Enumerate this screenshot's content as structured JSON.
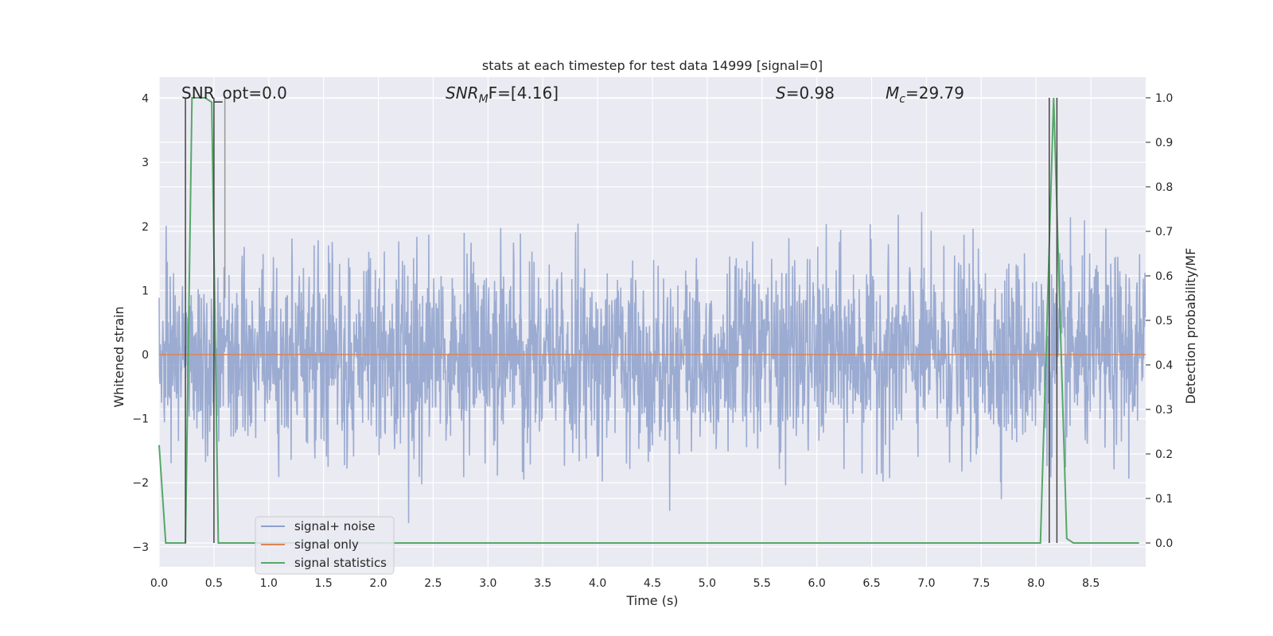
{
  "chart_data": {
    "type": "line",
    "title": "stats at each timestep for test data 14999 [signal=0]",
    "xlabel": "Time (s)",
    "ylabel_left": "Whitened strain",
    "ylabel_right": "Detection probability/MF",
    "xlim": [
      0,
      9.0
    ],
    "ylim_left": [
      -3.25,
      4.3
    ],
    "ylim_right": [
      0,
      1.0
    ],
    "x_ticks": [
      "0.0",
      "0.5",
      "1.0",
      "1.5",
      "2.0",
      "2.5",
      "3.0",
      "3.5",
      "4.0",
      "4.5",
      "5.0",
      "5.5",
      "6.0",
      "6.5",
      "7.0",
      "7.5",
      "8.0",
      "8.5"
    ],
    "y_ticks_left": [
      "−3",
      "−2",
      "−1",
      "0",
      "1",
      "2",
      "3",
      "4"
    ],
    "y_ticks_right": [
      "0.0",
      "0.1",
      "0.2",
      "0.3",
      "0.4",
      "0.5",
      "0.6",
      "0.7",
      "0.8",
      "0.9",
      "1.0"
    ],
    "grid": true,
    "annotations": {
      "snr_opt": "SNR_opt=0.0",
      "snr_mf_label": "SNR",
      "snr_mf_sub": "M",
      "snr_mf_rest": "F=[4.16]",
      "s_label": "S",
      "s_value": "=0.98",
      "mc_label": "M",
      "mc_sub": "c",
      "mc_value": "=29.79"
    },
    "legend": {
      "placement": "lower-left",
      "entries": [
        "signal+ noise",
        "signal only",
        "signal statistics"
      ]
    },
    "series": [
      {
        "name": "signal+ noise",
        "kind": "whitened noise strain, 4096 Hz, approx. gaussian sigma 0.75",
        "color": "#8da0cb",
        "sample_rate": 4096,
        "sigma": 0.75
      },
      {
        "name": "signal only",
        "color": "#dd8452",
        "x": [
          0,
          9.0
        ],
        "y": [
          0,
          0
        ]
      },
      {
        "name": "signal statistics",
        "axis": "right",
        "color": "#55a868",
        "x": [
          0.0,
          0.06,
          0.12,
          0.18,
          0.24,
          0.3,
          0.36,
          0.42,
          0.48,
          0.54,
          0.6,
          8.04,
          8.1,
          8.16,
          8.22,
          8.28,
          8.34,
          8.4,
          8.94
        ],
        "y": [
          0.22,
          0.0,
          0.0,
          0.0,
          0.0,
          1.0,
          1.0,
          1.0,
          0.99,
          0.0,
          0.0,
          0.0,
          0.5,
          1.0,
          0.5,
          0.01,
          0.0,
          0.0,
          0.0
        ]
      },
      {
        "name": "detection markers",
        "color": "#444444",
        "x": [
          0.24,
          0.5,
          8.12,
          8.19
        ],
        "y": [
          1.0,
          1.0,
          1.0,
          1.0
        ]
      }
    ],
    "secondary_markers": {
      "color": "#999999",
      "x": [
        0.6
      ],
      "y": [
        1.0
      ]
    },
    "colors": {
      "background": "#eaeaf2",
      "grid": "#ffffff",
      "noise": "#8da0cb",
      "signal": "#dd8452",
      "stats": "#55a868"
    }
  }
}
